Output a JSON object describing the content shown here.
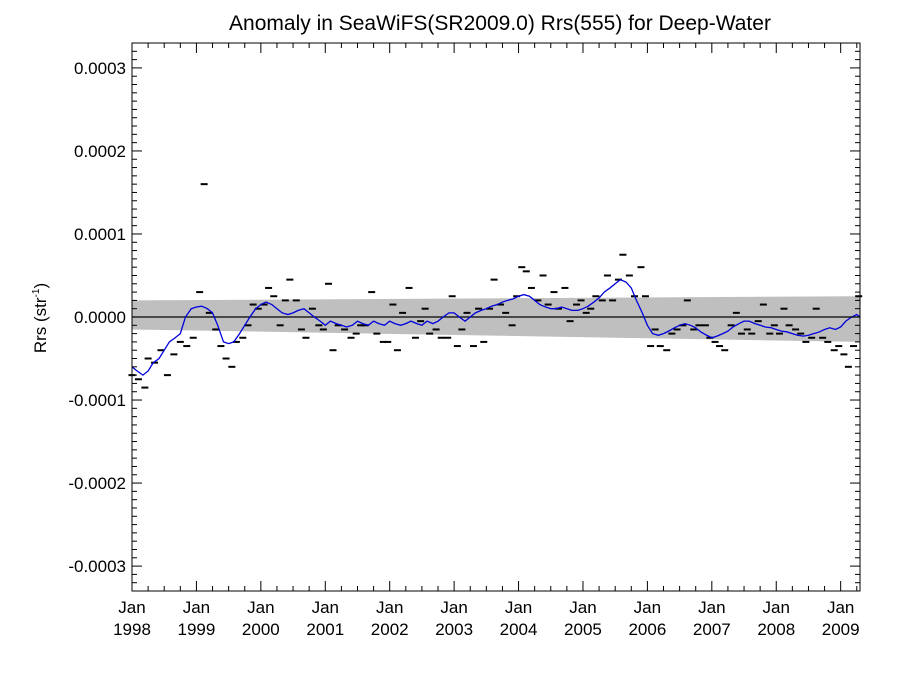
{
  "chart_data": {
    "type": "scatter",
    "title": "Anomaly in SeaWiFS(SR2009.0) Rrs(555) for Deep-Water",
    "ylabel": {
      "main": "Rrs (str",
      "sup": "-1",
      "end": ")"
    },
    "xlabel": "",
    "xlim": [
      1998.0,
      2009.3
    ],
    "ylim": [
      -0.00033,
      0.00033
    ],
    "grid": false,
    "colors": {
      "points": "#000000",
      "smooth": "#0000dd",
      "band": "#bfbfbf",
      "zero": "#000000"
    },
    "y_ticks": [
      {
        "value": 0.0003,
        "label": "0.0003"
      },
      {
        "value": 0.0002,
        "label": "0.0002"
      },
      {
        "value": 0.0001,
        "label": "0.0001"
      },
      {
        "value": 0.0,
        "label": "0.0000"
      },
      {
        "value": -0.0001,
        "label": "-0.0001"
      },
      {
        "value": -0.0002,
        "label": "-0.0002"
      },
      {
        "value": -0.0003,
        "label": "-0.0003"
      }
    ],
    "x_ticks": [
      {
        "value": 1998.0,
        "month": "Jan",
        "year": "1998"
      },
      {
        "value": 1999.0,
        "month": "Jan",
        "year": "1999"
      },
      {
        "value": 2000.0,
        "month": "Jan",
        "year": "2000"
      },
      {
        "value": 2001.0,
        "month": "Jan",
        "year": "2001"
      },
      {
        "value": 2002.0,
        "month": "Jan",
        "year": "2002"
      },
      {
        "value": 2003.0,
        "month": "Jan",
        "year": "2003"
      },
      {
        "value": 2004.0,
        "month": "Jan",
        "year": "2004"
      },
      {
        "value": 2005.0,
        "month": "Jan",
        "year": "2005"
      },
      {
        "value": 2006.0,
        "month": "Jan",
        "year": "2006"
      },
      {
        "value": 2007.0,
        "month": "Jan",
        "year": "2007"
      },
      {
        "value": 2008.0,
        "month": "Jan",
        "year": "2008"
      },
      {
        "value": 2009.0,
        "month": "Jan",
        "year": "2009"
      }
    ],
    "band": {
      "x": [
        1998.0,
        2009.3
      ],
      "upper": [
        2e-05,
        2.5e-05
      ],
      "lower": [
        -1.5e-05,
        -3e-05
      ]
    },
    "zero_line": 0.0,
    "points": [
      [
        1998.0,
        -7e-05
      ],
      [
        1998.1,
        -7.5e-05
      ],
      [
        1998.2,
        -8.5e-05
      ],
      [
        1998.25,
        -5e-05
      ],
      [
        1998.35,
        -5.5e-05
      ],
      [
        1998.45,
        -4e-05
      ],
      [
        1998.55,
        -7e-05
      ],
      [
        1998.65,
        -4.5e-05
      ],
      [
        1998.75,
        -3e-05
      ],
      [
        1998.85,
        -3.5e-05
      ],
      [
        1998.95,
        -2.5e-05
      ],
      [
        1999.05,
        3e-05
      ],
      [
        1999.12,
        0.00016
      ],
      [
        1999.2,
        5e-06
      ],
      [
        1999.3,
        -1.5e-05
      ],
      [
        1999.38,
        -3.5e-05
      ],
      [
        1999.46,
        -5e-05
      ],
      [
        1999.55,
        -6e-05
      ],
      [
        1999.62,
        -3e-05
      ],
      [
        1999.72,
        -2.5e-05
      ],
      [
        1999.8,
        -1e-05
      ],
      [
        1999.88,
        1.5e-05
      ],
      [
        1999.96,
        1e-05
      ],
      [
        2000.05,
        1.5e-05
      ],
      [
        2000.12,
        3.5e-05
      ],
      [
        2000.2,
        2.5e-05
      ],
      [
        2000.3,
        -1e-05
      ],
      [
        2000.38,
        2e-05
      ],
      [
        2000.45,
        4.5e-05
      ],
      [
        2000.55,
        2e-05
      ],
      [
        2000.63,
        -1.5e-05
      ],
      [
        2000.7,
        -2.5e-05
      ],
      [
        2000.8,
        1e-05
      ],
      [
        2000.9,
        -1e-05
      ],
      [
        2000.97,
        -1.5e-05
      ],
      [
        2001.05,
        4e-05
      ],
      [
        2001.12,
        -4e-05
      ],
      [
        2001.2,
        -1e-05
      ],
      [
        2001.3,
        -1.5e-05
      ],
      [
        2001.4,
        -2.5e-05
      ],
      [
        2001.48,
        -2e-05
      ],
      [
        2001.55,
        -1e-05
      ],
      [
        2001.62,
        -1e-05
      ],
      [
        2001.72,
        3e-05
      ],
      [
        2001.8,
        -2e-05
      ],
      [
        2001.9,
        -3e-05
      ],
      [
        2001.97,
        -3e-05
      ],
      [
        2002.05,
        1.5e-05
      ],
      [
        2002.12,
        -4e-05
      ],
      [
        2002.2,
        5e-06
      ],
      [
        2002.3,
        3.5e-05
      ],
      [
        2002.4,
        -2.5e-05
      ],
      [
        2002.48,
        -5e-06
      ],
      [
        2002.55,
        1e-05
      ],
      [
        2002.62,
        -2e-05
      ],
      [
        2002.72,
        -1.5e-05
      ],
      [
        2002.8,
        -2.5e-05
      ],
      [
        2002.9,
        -2.5e-05
      ],
      [
        2002.97,
        2.5e-05
      ],
      [
        2003.05,
        -3.5e-05
      ],
      [
        2003.12,
        -1.5e-05
      ],
      [
        2003.2,
        5e-06
      ],
      [
        2003.3,
        -3.5e-05
      ],
      [
        2003.38,
        1e-05
      ],
      [
        2003.46,
        -3e-05
      ],
      [
        2003.55,
        1e-05
      ],
      [
        2003.62,
        4.5e-05
      ],
      [
        2003.72,
        1.5e-05
      ],
      [
        2003.8,
        5e-06
      ],
      [
        2003.9,
        -1e-05
      ],
      [
        2003.97,
        2.5e-05
      ],
      [
        2004.05,
        6e-05
      ],
      [
        2004.12,
        5.5e-05
      ],
      [
        2004.2,
        3.5e-05
      ],
      [
        2004.3,
        2e-05
      ],
      [
        2004.38,
        5e-05
      ],
      [
        2004.46,
        1.5e-05
      ],
      [
        2004.55,
        3e-05
      ],
      [
        2004.62,
        1e-05
      ],
      [
        2004.72,
        3.5e-05
      ],
      [
        2004.8,
        -5e-06
      ],
      [
        2004.9,
        1.5e-05
      ],
      [
        2004.97,
        2e-05
      ],
      [
        2005.05,
        5e-06
      ],
      [
        2005.12,
        1e-05
      ],
      [
        2005.2,
        2.5e-05
      ],
      [
        2005.3,
        2e-05
      ],
      [
        2005.38,
        5e-05
      ],
      [
        2005.46,
        2e-05
      ],
      [
        2005.55,
        4.5e-05
      ],
      [
        2005.62,
        7.5e-05
      ],
      [
        2005.72,
        5e-05
      ],
      [
        2005.8,
        2.5e-05
      ],
      [
        2005.9,
        6e-05
      ],
      [
        2005.97,
        2.5e-05
      ],
      [
        2006.05,
        -3.5e-05
      ],
      [
        2006.12,
        -1.5e-05
      ],
      [
        2006.2,
        -3.5e-05
      ],
      [
        2006.3,
        -4e-05
      ],
      [
        2006.38,
        -2e-05
      ],
      [
        2006.46,
        -1.5e-05
      ],
      [
        2006.55,
        -1e-05
      ],
      [
        2006.62,
        2e-05
      ],
      [
        2006.72,
        -1.5e-05
      ],
      [
        2006.8,
        -1e-05
      ],
      [
        2006.9,
        -1e-05
      ],
      [
        2006.97,
        -2.5e-05
      ],
      [
        2007.05,
        -3e-05
      ],
      [
        2007.12,
        -3.5e-05
      ],
      [
        2007.2,
        -4e-05
      ],
      [
        2007.3,
        -1e-05
      ],
      [
        2007.38,
        5e-06
      ],
      [
        2007.46,
        -2e-05
      ],
      [
        2007.55,
        -1.5e-05
      ],
      [
        2007.62,
        -2e-05
      ],
      [
        2007.72,
        -5e-06
      ],
      [
        2007.8,
        1.5e-05
      ],
      [
        2007.9,
        -2e-05
      ],
      [
        2007.97,
        -1e-05
      ],
      [
        2008.05,
        -2e-05
      ],
      [
        2008.12,
        1e-05
      ],
      [
        2008.2,
        -1e-05
      ],
      [
        2008.3,
        -1.5e-05
      ],
      [
        2008.38,
        -2e-05
      ],
      [
        2008.46,
        -3e-05
      ],
      [
        2008.55,
        -2.5e-05
      ],
      [
        2008.62,
        1e-05
      ],
      [
        2008.72,
        -2.5e-05
      ],
      [
        2008.8,
        -3e-05
      ],
      [
        2008.9,
        -4e-05
      ],
      [
        2008.97,
        -3.5e-05
      ],
      [
        2009.05,
        -4.5e-05
      ],
      [
        2009.12,
        -6e-05
      ],
      [
        2009.2,
        -3.5e-05
      ],
      [
        2009.28,
        2.5e-05
      ]
    ],
    "smooth_line": [
      [
        1998.0,
        -6e-05
      ],
      [
        1998.08,
        -6.5e-05
      ],
      [
        1998.17,
        -7e-05
      ],
      [
        1998.25,
        -6.5e-05
      ],
      [
        1998.33,
        -5.5e-05
      ],
      [
        1998.42,
        -5e-05
      ],
      [
        1998.5,
        -4e-05
      ],
      [
        1998.58,
        -3e-05
      ],
      [
        1998.67,
        -2.5e-05
      ],
      [
        1998.75,
        -2e-05
      ],
      [
        1998.83,
        0.0
      ],
      [
        1998.92,
        1e-05
      ],
      [
        1999.0,
        1.2e-05
      ],
      [
        1999.08,
        1.3e-05
      ],
      [
        1999.17,
        1e-05
      ],
      [
        1999.25,
        5e-06
      ],
      [
        1999.33,
        -1e-05
      ],
      [
        1999.42,
        -3e-05
      ],
      [
        1999.5,
        -3.2e-05
      ],
      [
        1999.58,
        -3e-05
      ],
      [
        1999.67,
        -2e-05
      ],
      [
        1999.75,
        -1e-05
      ],
      [
        1999.83,
        0.0
      ],
      [
        1999.92,
        1e-05
      ],
      [
        2000.0,
        1.5e-05
      ],
      [
        2000.08,
        1.8e-05
      ],
      [
        2000.17,
        1.5e-05
      ],
      [
        2000.25,
        1e-05
      ],
      [
        2000.33,
        5e-06
      ],
      [
        2000.42,
        3e-06
      ],
      [
        2000.5,
        5e-06
      ],
      [
        2000.58,
        8e-06
      ],
      [
        2000.67,
        1e-05
      ],
      [
        2000.75,
        5e-06
      ],
      [
        2000.83,
        0.0
      ],
      [
        2000.92,
        -5e-06
      ],
      [
        2001.0,
        -1e-05
      ],
      [
        2001.08,
        -5e-06
      ],
      [
        2001.17,
        -8e-06
      ],
      [
        2001.25,
        -1e-05
      ],
      [
        2001.33,
        -1.2e-05
      ],
      [
        2001.42,
        -1e-05
      ],
      [
        2001.5,
        -5e-06
      ],
      [
        2001.58,
        -8e-06
      ],
      [
        2001.67,
        -1e-05
      ],
      [
        2001.75,
        -5e-06
      ],
      [
        2001.83,
        -8e-06
      ],
      [
        2001.92,
        -1e-05
      ],
      [
        2002.0,
        -5e-06
      ],
      [
        2002.08,
        -8e-06
      ],
      [
        2002.17,
        -1e-05
      ],
      [
        2002.25,
        -8e-06
      ],
      [
        2002.33,
        -5e-06
      ],
      [
        2002.42,
        -8e-06
      ],
      [
        2002.5,
        -1e-05
      ],
      [
        2002.58,
        -5e-06
      ],
      [
        2002.67,
        -8e-06
      ],
      [
        2002.75,
        -5e-06
      ],
      [
        2002.83,
        0.0
      ],
      [
        2002.92,
        5e-06
      ],
      [
        2003.0,
        5e-06
      ],
      [
        2003.08,
        0.0
      ],
      [
        2003.17,
        -5e-06
      ],
      [
        2003.25,
        0.0
      ],
      [
        2003.33,
        5e-06
      ],
      [
        2003.42,
        8e-06
      ],
      [
        2003.5,
        1e-05
      ],
      [
        2003.58,
        1.3e-05
      ],
      [
        2003.67,
        1.5e-05
      ],
      [
        2003.75,
        1.8e-05
      ],
      [
        2003.83,
        2e-05
      ],
      [
        2003.92,
        2.2e-05
      ],
      [
        2004.0,
        2.5e-05
      ],
      [
        2004.08,
        2.7e-05
      ],
      [
        2004.17,
        2.5e-05
      ],
      [
        2004.25,
        2e-05
      ],
      [
        2004.33,
        1.5e-05
      ],
      [
        2004.42,
        1.2e-05
      ],
      [
        2004.5,
        1e-05
      ],
      [
        2004.58,
        1e-05
      ],
      [
        2004.67,
        1.2e-05
      ],
      [
        2004.75,
        1e-05
      ],
      [
        2004.83,
        8e-06
      ],
      [
        2004.92,
        8e-06
      ],
      [
        2005.0,
        1e-05
      ],
      [
        2005.08,
        1.3e-05
      ],
      [
        2005.17,
        1.8e-05
      ],
      [
        2005.25,
        2.3e-05
      ],
      [
        2005.33,
        3e-05
      ],
      [
        2005.42,
        3.5e-05
      ],
      [
        2005.5,
        4e-05
      ],
      [
        2005.58,
        4.5e-05
      ],
      [
        2005.67,
        4.2e-05
      ],
      [
        2005.75,
        3.5e-05
      ],
      [
        2005.83,
        2e-05
      ],
      [
        2005.92,
        5e-06
      ],
      [
        2006.0,
        -1e-05
      ],
      [
        2006.08,
        -2e-05
      ],
      [
        2006.17,
        -2.2e-05
      ],
      [
        2006.25,
        -2e-05
      ],
      [
        2006.33,
        -1.7e-05
      ],
      [
        2006.42,
        -1.3e-05
      ],
      [
        2006.5,
        -1e-05
      ],
      [
        2006.58,
        -8e-06
      ],
      [
        2006.67,
        -1e-05
      ],
      [
        2006.75,
        -1.3e-05
      ],
      [
        2006.83,
        -1.8e-05
      ],
      [
        2006.92,
        -2.2e-05
      ],
      [
        2007.0,
        -2.5e-05
      ],
      [
        2007.08,
        -2.3e-05
      ],
      [
        2007.17,
        -2e-05
      ],
      [
        2007.25,
        -1.7e-05
      ],
      [
        2007.33,
        -1.2e-05
      ],
      [
        2007.42,
        -8e-06
      ],
      [
        2007.5,
        -5e-06
      ],
      [
        2007.58,
        -5e-06
      ],
      [
        2007.67,
        -8e-06
      ],
      [
        2007.75,
        -1e-05
      ],
      [
        2007.83,
        -1.2e-05
      ],
      [
        2007.92,
        -1.3e-05
      ],
      [
        2008.0,
        -1.5e-05
      ],
      [
        2008.08,
        -1.7e-05
      ],
      [
        2008.17,
        -1.8e-05
      ],
      [
        2008.25,
        -2e-05
      ],
      [
        2008.33,
        -2.2e-05
      ],
      [
        2008.42,
        -2.3e-05
      ],
      [
        2008.5,
        -2.2e-05
      ],
      [
        2008.58,
        -2e-05
      ],
      [
        2008.67,
        -1.8e-05
      ],
      [
        2008.75,
        -1.5e-05
      ],
      [
        2008.83,
        -1.3e-05
      ],
      [
        2008.92,
        -1.5e-05
      ],
      [
        2009.0,
        -1.2e-05
      ],
      [
        2009.08,
        -5e-06
      ],
      [
        2009.17,
        0.0
      ],
      [
        2009.25,
        3e-06
      ],
      [
        2009.3,
        0.0
      ]
    ]
  }
}
